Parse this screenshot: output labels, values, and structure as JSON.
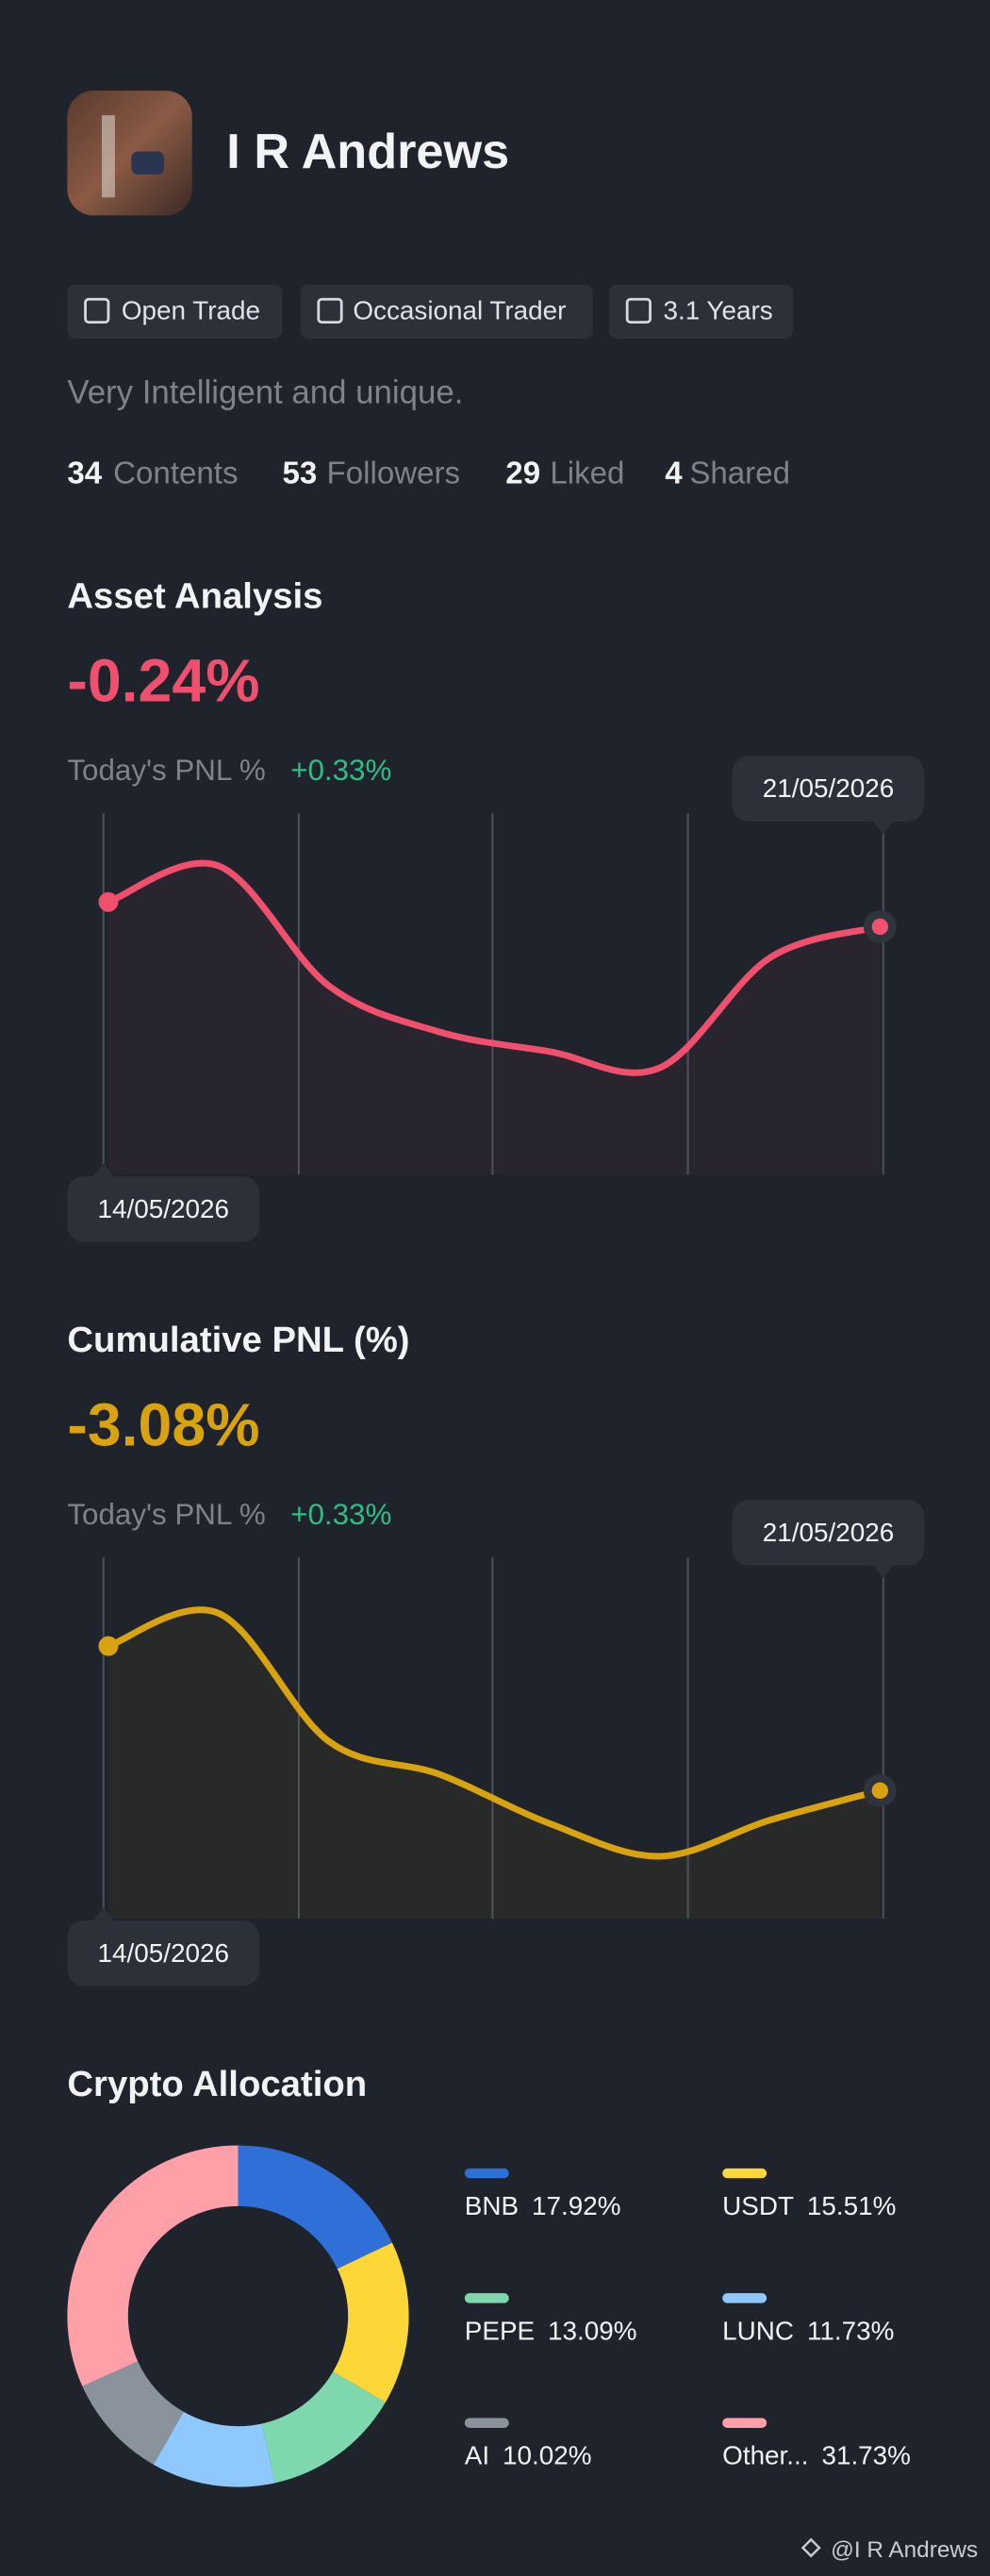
{
  "profile": {
    "name": "I R Andrews",
    "badges": [
      "Open Trade",
      "Occasional Trader",
      "3.1 Years"
    ],
    "bio": "Very Intelligent and unique.",
    "stats": [
      {
        "value": "34",
        "label": "Contents"
      },
      {
        "value": "53",
        "label": "Followers"
      },
      {
        "value": "29",
        "label": "Liked"
      },
      {
        "value": "4",
        "label": "Shared"
      }
    ]
  },
  "chart_data": [
    {
      "type": "line",
      "title": "Asset Analysis",
      "headline": "-0.24%",
      "subtitle": "Today's PNL %",
      "subtitle_value": "+0.33%",
      "x": [
        "14/05/2026",
        null,
        null,
        null,
        null,
        null,
        null,
        "21/05/2026"
      ],
      "values": [
        166,
        188,
        115,
        87,
        75,
        65,
        132,
        151
      ],
      "color": "#f0506e",
      "ylim": [
        0,
        220
      ]
    },
    {
      "type": "line",
      "title": "Cumulative PNL (%)",
      "headline": "-3.08%",
      "subtitle": "Today's PNL %",
      "subtitle_value": "+0.33%",
      "x": [
        "14/05/2026",
        null,
        null,
        null,
        null,
        null,
        null,
        "21/05/2026"
      ],
      "values": [
        166,
        186,
        108,
        88,
        58,
        38,
        60,
        78
      ],
      "color": "#d9a20f",
      "ylim": [
        0,
        220
      ]
    },
    {
      "type": "pie",
      "title": "Crypto Allocation",
      "categories": [
        "BNB",
        "USDT",
        "PEPE",
        "LUNC",
        "AI",
        "Other..."
      ],
      "values": [
        17.92,
        15.51,
        13.09,
        11.73,
        10.02,
        31.73
      ],
      "value_labels": [
        "17.92%",
        "15.51%",
        "13.09%",
        "11.73%",
        "10.02%",
        "31.73%"
      ],
      "colors": [
        "#2f6fd8",
        "#fdd738",
        "#7dd8ad",
        "#8ec8ff",
        "#8a929c",
        "#ff9fa8"
      ]
    }
  ],
  "watermark": "@I R Andrews"
}
